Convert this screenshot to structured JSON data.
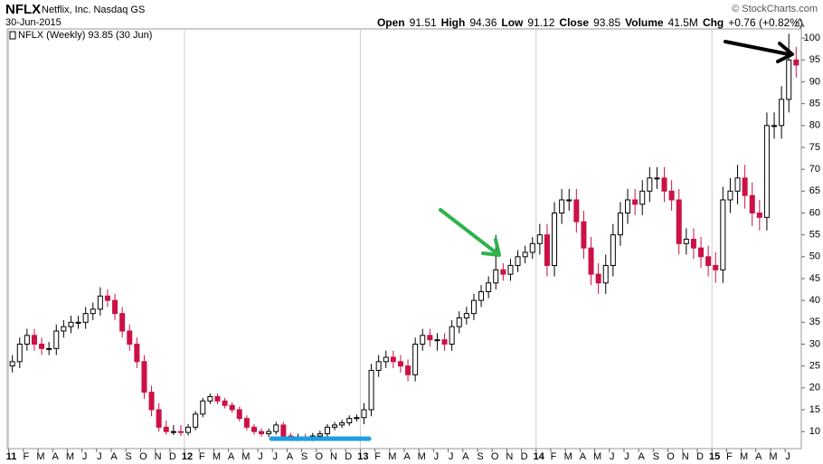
{
  "header": {
    "symbol": "NFLX",
    "name": "Netflix, Inc. Nasdaq GS",
    "date": "30-Jun-2015",
    "copyright": "© StockCharts.com",
    "quote": [
      {
        "label": "Open",
        "value": 91.51
      },
      {
        "label": "High",
        "value": 94.36
      },
      {
        "label": "Low",
        "value": 91.12
      },
      {
        "label": "Close",
        "value": 93.85
      },
      {
        "label": "Volume",
        "value": "41.5M"
      },
      {
        "label": "Chg",
        "value": "+0.76 (+0.82%)"
      }
    ]
  },
  "chart_data": {
    "type": "candlestick",
    "legend": "NFLX (Weekly) 93.85 (30 Jun)",
    "up_color": "#000000",
    "down_color": "#cc1144",
    "grid": true,
    "xlim": [
      -0.1,
      54.1
    ],
    "ylim": [
      6.1,
      102.1
    ],
    "yticks": [
      10,
      15,
      20,
      25,
      30,
      35,
      40,
      45,
      50,
      55,
      60,
      65,
      70,
      75,
      80,
      85,
      90,
      95,
      100
    ],
    "xticks": [
      {
        "value": 0,
        "label": "11"
      },
      {
        "value": 1,
        "label": "F"
      },
      {
        "value": 2,
        "label": "M"
      },
      {
        "value": 3,
        "label": "A"
      },
      {
        "value": 4,
        "label": "M"
      },
      {
        "value": 5,
        "label": "J"
      },
      {
        "value": 6,
        "label": "J"
      },
      {
        "value": 7,
        "label": "A"
      },
      {
        "value": 8,
        "label": "S"
      },
      {
        "value": 9,
        "label": "O"
      },
      {
        "value": 10,
        "label": "N"
      },
      {
        "value": 11,
        "label": "D"
      },
      {
        "value": 12,
        "label": "12"
      },
      {
        "value": 13,
        "label": "F"
      },
      {
        "value": 14,
        "label": "M"
      },
      {
        "value": 15,
        "label": "A"
      },
      {
        "value": 16,
        "label": "M"
      },
      {
        "value": 17,
        "label": "J"
      },
      {
        "value": 18,
        "label": "J"
      },
      {
        "value": 19,
        "label": "A"
      },
      {
        "value": 20,
        "label": "S"
      },
      {
        "value": 21,
        "label": "O"
      },
      {
        "value": 22,
        "label": "N"
      },
      {
        "value": 23,
        "label": "D"
      },
      {
        "value": 24,
        "label": "13"
      },
      {
        "value": 25,
        "label": "F"
      },
      {
        "value": 26,
        "label": "M"
      },
      {
        "value": 27,
        "label": "A"
      },
      {
        "value": 28,
        "label": "M"
      },
      {
        "value": 29,
        "label": "J"
      },
      {
        "value": 30,
        "label": "J"
      },
      {
        "value": 31,
        "label": "A"
      },
      {
        "value": 32,
        "label": "S"
      },
      {
        "value": 33,
        "label": "O"
      },
      {
        "value": 34,
        "label": "N"
      },
      {
        "value": 35,
        "label": "D"
      },
      {
        "value": 36,
        "label": "14"
      },
      {
        "value": 37,
        "label": "F"
      },
      {
        "value": 38,
        "label": "M"
      },
      {
        "value": 39,
        "label": "A"
      },
      {
        "value": 40,
        "label": "M"
      },
      {
        "value": 41,
        "label": "J"
      },
      {
        "value": 42,
        "label": "J"
      },
      {
        "value": 43,
        "label": "A"
      },
      {
        "value": 44,
        "label": "S"
      },
      {
        "value": 45,
        "label": "O"
      },
      {
        "value": 46,
        "label": "N"
      },
      {
        "value": 47,
        "label": "D"
      },
      {
        "value": 48,
        "label": "15"
      },
      {
        "value": 49,
        "label": "F"
      },
      {
        "value": 50,
        "label": "M"
      },
      {
        "value": 51,
        "label": "A"
      },
      {
        "value": 52,
        "label": "M"
      },
      {
        "value": 53,
        "label": "J"
      }
    ],
    "x": [
      0.25,
      0.75,
      1.25,
      1.75,
      2.25,
      2.75,
      3.25,
      3.75,
      4.25,
      4.75,
      5.25,
      5.75,
      6.25,
      6.75,
      7.25,
      7.75,
      8.25,
      8.75,
      9.25,
      9.75,
      10.25,
      10.75,
      11.25,
      11.75,
      12.25,
      12.75,
      13.25,
      13.75,
      14.25,
      14.75,
      15.25,
      15.75,
      16.25,
      16.75,
      17.25,
      17.75,
      18.25,
      18.75,
      19.25,
      19.75,
      20.25,
      20.75,
      21.25,
      21.75,
      22.25,
      22.75,
      23.25,
      23.75,
      24.25,
      24.75,
      25.25,
      25.75,
      26.25,
      26.75,
      27.25,
      27.75,
      28.25,
      28.75,
      29.25,
      29.75,
      30.25,
      30.75,
      31.25,
      31.75,
      32.25,
      32.75,
      33.25,
      33.75,
      34.25,
      34.75,
      35.25,
      35.75,
      36.25,
      36.75,
      37.25,
      37.75,
      38.25,
      38.75,
      39.25,
      39.75,
      40.25,
      40.75,
      41.25,
      41.75,
      42.25,
      42.75,
      43.25,
      43.75,
      44.25,
      44.75,
      45.25,
      45.75,
      46.25,
      46.75,
      47.25,
      47.75,
      48.25,
      48.75,
      49.25,
      49.75,
      50.25,
      50.75,
      51.25,
      51.75,
      52.25,
      52.75,
      53.25,
      53.75
    ],
    "open": [
      25,
      26,
      30,
      32,
      30,
      29,
      29,
      33,
      34,
      35,
      35,
      37,
      38,
      41,
      40,
      37,
      33,
      30,
      26,
      19,
      15,
      11,
      10,
      10,
      9.8,
      11,
      14,
      17,
      18,
      17,
      16,
      15,
      13,
      11,
      10,
      9.5,
      10,
      11.5,
      9,
      8.5,
      8.8,
      8.5,
      9,
      9.5,
      11,
      11.5,
      12,
      13,
      13.2,
      15,
      24,
      26,
      27,
      26,
      25,
      23,
      30,
      32,
      31,
      31,
      30,
      34,
      36,
      37,
      40,
      42,
      44,
      47,
      46,
      48,
      50,
      51,
      53,
      55,
      48,
      60,
      63,
      63,
      58,
      52,
      46,
      44,
      48,
      55,
      60,
      63,
      62,
      65,
      68,
      68,
      65,
      63,
      53,
      54,
      52,
      50,
      48,
      47,
      63,
      65,
      68,
      64,
      60,
      59,
      80,
      80,
      86,
      95
    ],
    "high": [
      27.5,
      31.5,
      33.5,
      33.5,
      31.5,
      30.5,
      34.5,
      35.5,
      36.5,
      36.5,
      38.5,
      39.5,
      43,
      42.5,
      41.5,
      38.5,
      34.5,
      31.5,
      27.5,
      20.5,
      16.5,
      12.5,
      11.5,
      11.5,
      11.7,
      14.7,
      17.7,
      18.7,
      18.7,
      17.7,
      16.7,
      15.7,
      13.7,
      11.7,
      10.7,
      10.7,
      12.2,
      12.2,
      9.7,
      9.5,
      9.5,
      9.7,
      10.2,
      11.7,
      12.2,
      12.7,
      13.7,
      13.9,
      16.5,
      25.5,
      27.5,
      28.5,
      28.5,
      27.5,
      26.5,
      31.5,
      33.5,
      33.5,
      32.5,
      32.5,
      35.5,
      37.5,
      38.5,
      41.5,
      43.5,
      45.5,
      55,
      48.5,
      49.5,
      51.5,
      52.5,
      54.5,
      57.5,
      57.5,
      62.5,
      65.5,
      65.5,
      65.5,
      60.5,
      54.5,
      48.5,
      50.5,
      57.5,
      62.5,
      65.5,
      65.5,
      67.5,
      70.5,
      70.5,
      70.5,
      67.5,
      65.5,
      56.5,
      56.5,
      54.5,
      52.5,
      51,
      66,
      68,
      71,
      71,
      67,
      63,
      83,
      83,
      89,
      101,
      98
    ],
    "low": [
      23.5,
      24.5,
      28.5,
      28.5,
      27.5,
      27.5,
      27.5,
      31.5,
      32.5,
      33.5,
      33.5,
      35.5,
      36.5,
      38.5,
      35.5,
      31.5,
      28.5,
      24.5,
      17.5,
      13.5,
      10,
      9.3,
      9.2,
      9,
      9.1,
      10.3,
      13.3,
      16.3,
      16.3,
      15.3,
      14.3,
      12.3,
      10.3,
      9.3,
      8.8,
      8.8,
      9.3,
      8.3,
      7.8,
      7.8,
      7.8,
      7.8,
      8.3,
      8.8,
      10.3,
      10.8,
      11.3,
      12.3,
      11.7,
      13.5,
      22.5,
      24.5,
      24.5,
      23.5,
      21.5,
      21.5,
      28.5,
      29.5,
      28.5,
      28.5,
      28.5,
      32.5,
      34.5,
      35.5,
      38.5,
      40.5,
      42.5,
      44.5,
      44.5,
      46.5,
      48.5,
      49.5,
      50.5,
      45.5,
      45.5,
      57.5,
      60.5,
      55.5,
      49.5,
      43.5,
      41.5,
      41.5,
      45.5,
      52.5,
      57.5,
      59.5,
      59.5,
      62.5,
      65.5,
      62.5,
      60.5,
      50.5,
      50.5,
      49.5,
      47.5,
      45.5,
      44,
      44,
      60,
      62,
      61,
      57,
      56,
      56,
      77,
      77,
      83,
      91
    ],
    "close": [
      26,
      30,
      32,
      30,
      29,
      29,
      33,
      34,
      35,
      35,
      37,
      38,
      41,
      40,
      37,
      33,
      30,
      26,
      19,
      15,
      11,
      10,
      10,
      9.8,
      11,
      14,
      17,
      18,
      17,
      16,
      15,
      13,
      11,
      10,
      9.5,
      10,
      11.5,
      9,
      8.5,
      8.8,
      8.5,
      9,
      9.5,
      11,
      11.5,
      12,
      13,
      13.2,
      15,
      24,
      26,
      27,
      26,
      25,
      23,
      30,
      32,
      31,
      31,
      30,
      34,
      36,
      37,
      40,
      42,
      44,
      47,
      46,
      48,
      50,
      51,
      53,
      55,
      48,
      60,
      63,
      63,
      58,
      52,
      46,
      44,
      48,
      55,
      60,
      63,
      62,
      65,
      68,
      68,
      65,
      63,
      53,
      54,
      52,
      50,
      48,
      47,
      63,
      65,
      68,
      64,
      60,
      59,
      80,
      80,
      86,
      95,
      93.85
    ]
  }
}
